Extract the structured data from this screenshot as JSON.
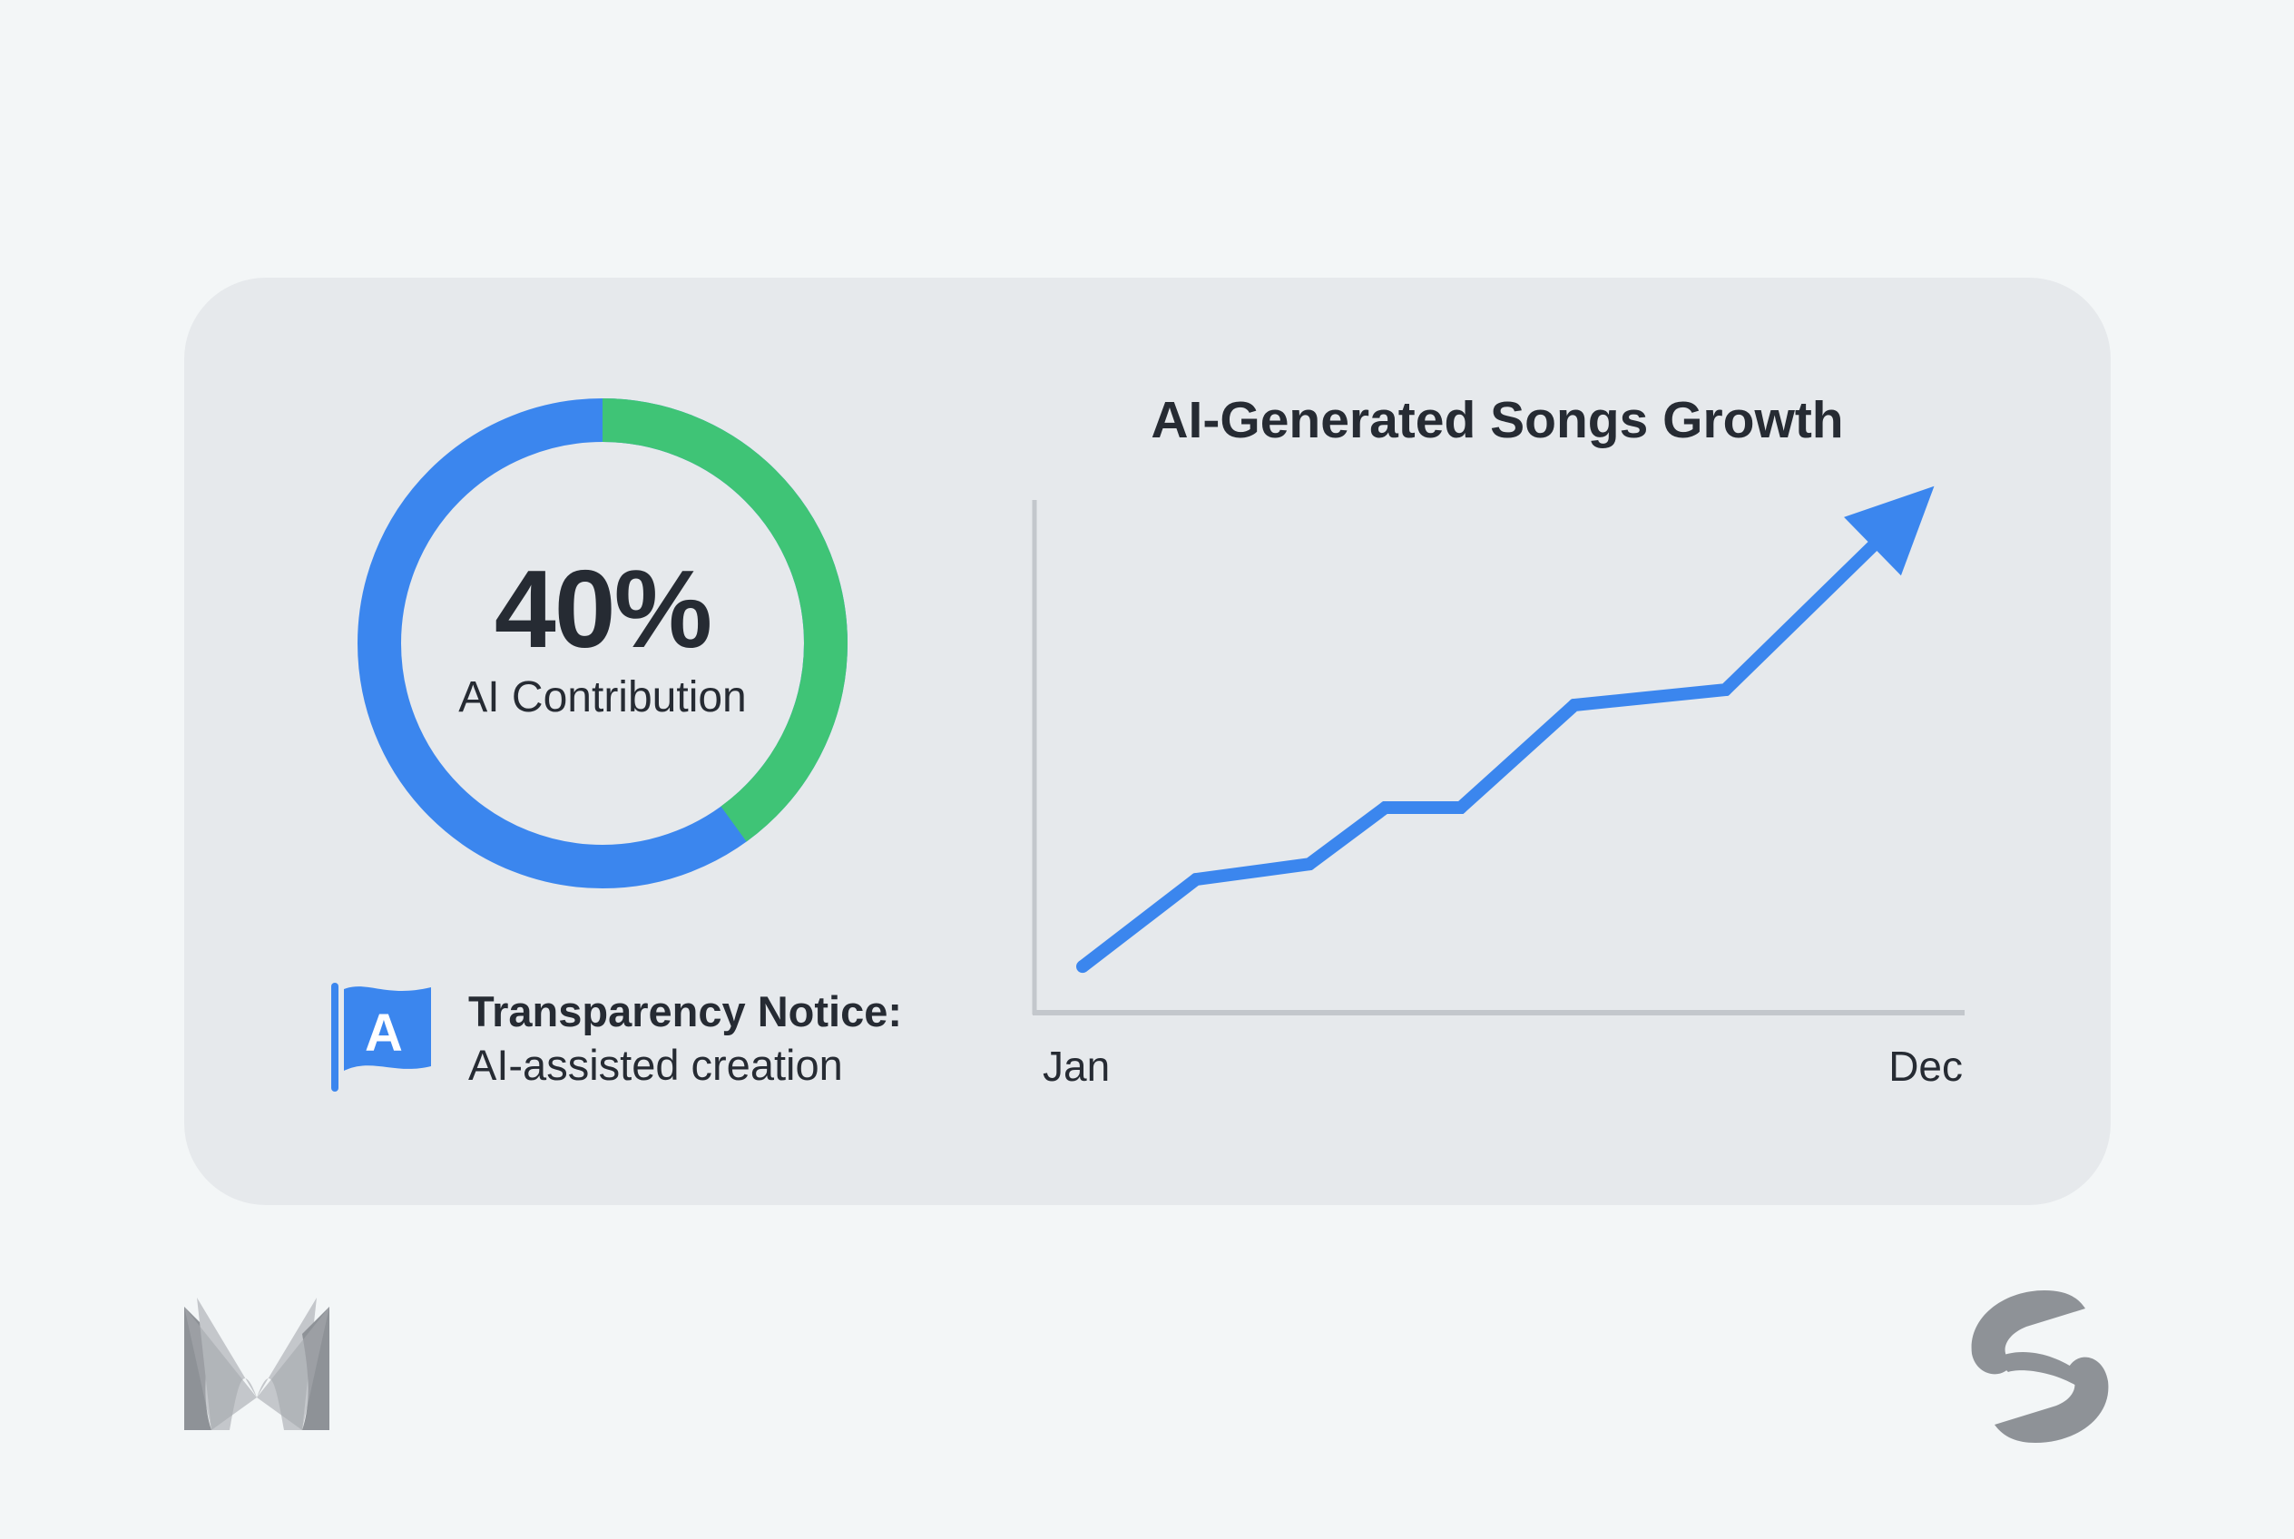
{
  "donut": {
    "value_text": "40%",
    "label": "AI Contribution",
    "ai_fraction": 0.4,
    "colors": {
      "ai": "#3fc476",
      "rest": "#3b86ee"
    }
  },
  "notice": {
    "icon": "flag-icon",
    "icon_letter": "A",
    "title": "Transparency Notice:",
    "subtitle": "AI-assisted creation"
  },
  "chart_data": {
    "type": "line",
    "title": "AI-Generated Songs Growth",
    "xlabel": "",
    "ylabel": "",
    "x_tick_labels": [
      "Jan",
      "Dec"
    ],
    "x": [
      1,
      2.5,
      4,
      5,
      6,
      7.5,
      9.5,
      12
    ],
    "values": [
      9,
      26,
      29,
      40,
      40,
      60,
      63,
      99
    ],
    "xlim": [
      1,
      12
    ],
    "ylim": [
      0,
      100
    ],
    "grid": false,
    "end_marker": "arrow",
    "color": "#3b86ee"
  },
  "logos": {
    "left": "M logo",
    "right": "S logo"
  }
}
